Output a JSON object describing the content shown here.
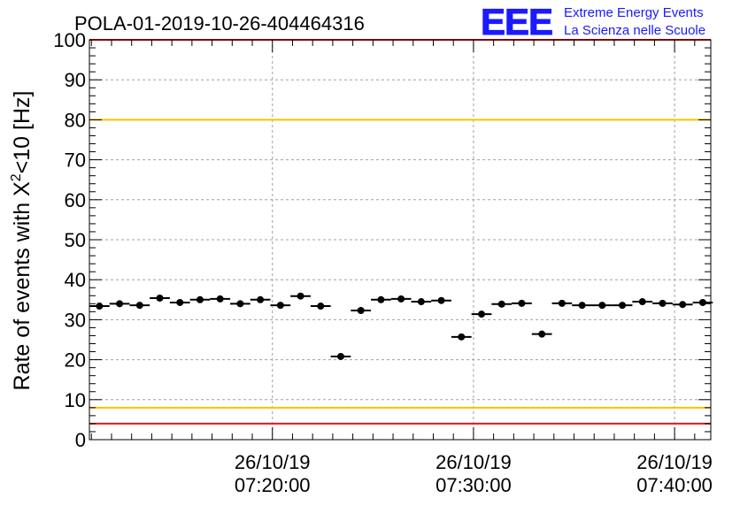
{
  "chart_data": {
    "type": "scatter",
    "title": "POLA-01-2019-10-26-404464316",
    "ylabel": "Rate of events with X²<10 [Hz]",
    "ylabel_parts": {
      "main": "Rate of events with X",
      "sup": "2",
      "rest": "<10 [Hz]"
    },
    "xlabel": "",
    "ylim": [
      0,
      100
    ],
    "y_ticks": [
      "0",
      "10",
      "20",
      "30",
      "40",
      "50",
      "60",
      "70",
      "80",
      "90",
      "100"
    ],
    "x_unit": "minutes after 07:00:00 on 26/10/19",
    "xlim": [
      10.9,
      41.8
    ],
    "x_ticks": [
      {
        "x": 20,
        "date": "26/10/19",
        "time": "07:20:00"
      },
      {
        "x": 30,
        "date": "26/10/19",
        "time": "07:30:00"
      },
      {
        "x": 40,
        "date": "26/10/19",
        "time": "07:40:00"
      }
    ],
    "bin_width_min": 1.0,
    "grid": true,
    "reference_lines": [
      {
        "y": 80,
        "color": "#f2c500"
      },
      {
        "y": 8,
        "color": "#f2c500"
      },
      {
        "y": 100,
        "color": "#e8141c"
      },
      {
        "y": 4,
        "color": "#e8141c"
      }
    ],
    "marker_color": "#000000",
    "points": [
      {
        "x": 11.4,
        "y": 33.4
      },
      {
        "x": 12.4,
        "y": 34.0
      },
      {
        "x": 13.4,
        "y": 33.6
      },
      {
        "x": 14.4,
        "y": 35.4
      },
      {
        "x": 15.4,
        "y": 34.3
      },
      {
        "x": 16.4,
        "y": 35.0
      },
      {
        "x": 17.4,
        "y": 35.2
      },
      {
        "x": 18.4,
        "y": 34.0
      },
      {
        "x": 19.4,
        "y": 35.0
      },
      {
        "x": 20.4,
        "y": 33.6
      },
      {
        "x": 21.4,
        "y": 35.9
      },
      {
        "x": 22.4,
        "y": 33.4
      },
      {
        "x": 23.4,
        "y": 20.8
      },
      {
        "x": 24.4,
        "y": 32.3
      },
      {
        "x": 25.4,
        "y": 35.0
      },
      {
        "x": 26.4,
        "y": 35.2
      },
      {
        "x": 27.4,
        "y": 34.5
      },
      {
        "x": 28.4,
        "y": 34.8
      },
      {
        "x": 29.4,
        "y": 25.7
      },
      {
        "x": 30.4,
        "y": 31.4
      },
      {
        "x": 31.4,
        "y": 33.9
      },
      {
        "x": 32.4,
        "y": 34.1
      },
      {
        "x": 33.4,
        "y": 26.4
      },
      {
        "x": 34.4,
        "y": 34.1
      },
      {
        "x": 35.4,
        "y": 33.6
      },
      {
        "x": 36.4,
        "y": 33.6
      },
      {
        "x": 37.4,
        "y": 33.6
      },
      {
        "x": 38.4,
        "y": 34.5
      },
      {
        "x": 39.4,
        "y": 34.1
      },
      {
        "x": 40.4,
        "y": 33.8
      },
      {
        "x": 41.4,
        "y": 34.3
      }
    ]
  },
  "logo": {
    "mark": "EEE",
    "line1": "Extreme Energy Events",
    "line2": "La Scienza nelle Scuole",
    "color": "#1a1aff"
  }
}
